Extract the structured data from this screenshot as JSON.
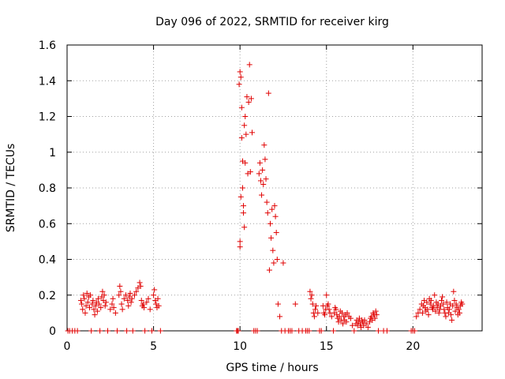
{
  "chart_data": {
    "type": "scatter",
    "title": "Day 096 of 2022, SRMTID for receiver kirg",
    "xlabel": "GPS time / hours",
    "ylabel": "SRMTID / TECUs",
    "xlim": [
      0,
      24
    ],
    "ylim": [
      0,
      1.6
    ],
    "xticks": [
      0,
      5,
      10,
      15,
      20
    ],
    "xtick_labels": [
      "0",
      "5",
      "10",
      "15",
      "20"
    ],
    "yticks": [
      0,
      0.2,
      0.4,
      0.6,
      0.8,
      1.0,
      1.2,
      1.4,
      1.6
    ],
    "ytick_labels": [
      "0",
      "0.2",
      "0.4",
      "0.6",
      "0.8",
      "1",
      "1.2",
      "1.4",
      "1.6"
    ],
    "grid": true,
    "marker": "+",
    "marker_color": "#e00000",
    "series": [
      {
        "name": "SRMTID",
        "x": [
          0.05,
          0.15,
          0.3,
          0.45,
          0.6,
          0.8,
          0.85,
          0.9,
          0.95,
          1.0,
          1.05,
          1.1,
          1.15,
          1.2,
          1.25,
          1.3,
          1.35,
          1.4,
          1.45,
          1.5,
          1.55,
          1.6,
          1.65,
          1.7,
          1.75,
          1.8,
          1.85,
          1.9,
          1.95,
          2.0,
          2.05,
          2.1,
          2.15,
          2.2,
          2.25,
          2.35,
          2.5,
          2.6,
          2.65,
          2.7,
          2.8,
          2.9,
          3.0,
          3.05,
          3.1,
          3.15,
          3.2,
          3.3,
          3.4,
          3.45,
          3.5,
          3.55,
          3.6,
          3.65,
          3.7,
          3.75,
          3.8,
          3.9,
          4.0,
          4.1,
          4.2,
          4.25,
          4.3,
          4.35,
          4.4,
          4.45,
          4.5,
          4.6,
          4.7,
          4.8,
          4.9,
          5.0,
          5.05,
          5.1,
          5.15,
          5.2,
          5.25,
          5.3,
          5.4,
          9.8,
          9.85,
          9.9,
          9.95,
          10.0,
          10.0,
          10.0,
          10.05,
          10.05,
          10.1,
          10.1,
          10.15,
          10.15,
          10.2,
          10.2,
          10.25,
          10.25,
          10.3,
          10.3,
          10.35,
          10.4,
          10.45,
          10.5,
          10.55,
          10.6,
          10.65,
          10.7,
          10.8,
          10.9,
          11.0,
          11.1,
          11.15,
          11.2,
          11.25,
          11.3,
          11.35,
          11.4,
          11.45,
          11.5,
          11.55,
          11.6,
          11.65,
          11.7,
          11.75,
          11.8,
          11.85,
          11.9,
          11.95,
          12.0,
          12.05,
          12.1,
          12.15,
          12.2,
          12.3,
          12.4,
          12.5,
          12.6,
          12.8,
          12.9,
          13.0,
          13.2,
          13.4,
          13.6,
          13.8,
          13.9,
          14.0,
          14.05,
          14.1,
          14.15,
          14.2,
          14.25,
          14.3,
          14.35,
          14.4,
          14.5,
          14.6,
          14.7,
          14.8,
          14.85,
          14.9,
          14.95,
          15.0,
          15.05,
          15.1,
          15.15,
          15.2,
          15.3,
          15.4,
          15.45,
          15.5,
          15.55,
          15.6,
          15.65,
          15.7,
          15.75,
          15.8,
          15.85,
          15.9,
          15.95,
          16.0,
          16.05,
          16.1,
          16.15,
          16.2,
          16.3,
          16.4,
          16.5,
          16.6,
          16.7,
          16.75,
          16.8,
          16.85,
          16.9,
          16.95,
          17.0,
          17.05,
          17.1,
          17.15,
          17.2,
          17.3,
          17.4,
          17.5,
          17.55,
          17.6,
          17.65,
          17.7,
          17.75,
          17.8,
          17.85,
          17.9,
          18.0,
          18.3,
          18.5,
          19.9,
          20.0,
          20.1,
          20.2,
          20.3,
          20.4,
          20.5,
          20.55,
          20.6,
          20.65,
          20.7,
          20.75,
          20.8,
          20.85,
          20.9,
          20.95,
          21.0,
          21.05,
          21.1,
          21.15,
          21.2,
          21.25,
          21.3,
          21.35,
          21.4,
          21.45,
          21.5,
          21.55,
          21.6,
          21.65,
          21.7,
          21.75,
          21.8,
          21.85,
          21.9,
          21.95,
          22.0,
          22.05,
          22.1,
          22.15,
          22.2,
          22.25,
          22.3,
          22.35,
          22.4,
          22.45,
          22.5,
          22.55,
          22.6,
          22.65,
          22.7,
          22.75,
          22.8,
          22.85
        ],
        "y": [
          0,
          0,
          0,
          0,
          0,
          0.17,
          0.15,
          0.12,
          0.2,
          0.18,
          0.1,
          0.14,
          0.21,
          0.16,
          0.19,
          0.13,
          0.2,
          0,
          0.15,
          0.17,
          0.12,
          0.09,
          0.14,
          0.16,
          0.11,
          0.18,
          0.15,
          0,
          0.13,
          0.19,
          0.22,
          0.17,
          0.2,
          0.14,
          0.16,
          0,
          0.12,
          0.15,
          0.18,
          0.13,
          0.1,
          0,
          0.2,
          0.25,
          0.22,
          0.15,
          0.12,
          0.18,
          0.2,
          0,
          0.17,
          0.14,
          0.19,
          0.21,
          0.16,
          0.18,
          0,
          0.2,
          0.22,
          0.24,
          0.27,
          0.25,
          0.17,
          0.14,
          0.15,
          0.13,
          0,
          0.16,
          0.18,
          0.12,
          0,
          0.2,
          0.23,
          0.17,
          0.15,
          0.13,
          0.18,
          0.14,
          0,
          0,
          0,
          0,
          1.38,
          1.45,
          0.5,
          0.47,
          1.42,
          0.75,
          1.25,
          1.08,
          0.95,
          0.8,
          0.7,
          0.66,
          1.15,
          0.58,
          1.2,
          0.94,
          1.1,
          1.31,
          0.88,
          1.28,
          1.49,
          0.89,
          1.3,
          1.11,
          0,
          0,
          0,
          0.88,
          0.94,
          0.84,
          0.76,
          0.9,
          0.82,
          1.04,
          0.96,
          0.85,
          0.72,
          0.66,
          1.33,
          0.34,
          0.6,
          0.52,
          0.68,
          0.45,
          0.38,
          0.7,
          0.64,
          0.55,
          0.4,
          0.15,
          0.08,
          0,
          0.38,
          0,
          0,
          0,
          0,
          0.15,
          0,
          0,
          0,
          0,
          0,
          0.22,
          0.18,
          0.2,
          0.15,
          0.1,
          0.08,
          0.12,
          0.14,
          0.1,
          0,
          0,
          0.14,
          0.1,
          0.09,
          0.12,
          0.2,
          0.14,
          0.15,
          0.12,
          0.1,
          0.08,
          0,
          0.1,
          0.13,
          0.12,
          0.09,
          0.07,
          0.05,
          0.08,
          0.11,
          0.06,
          0.1,
          0.04,
          0.08,
          0.06,
          0.09,
          0.05,
          0.1,
          0.08,
          0.07,
          0.03,
          0,
          0.04,
          0.06,
          0.03,
          0.05,
          0.07,
          0.04,
          0.02,
          0.06,
          0.05,
          0.03,
          0.06,
          0.04,
          0.02,
          0.05,
          0.07,
          0.08,
          0.06,
          0.1,
          0.09,
          0.07,
          0.11,
          0.09,
          0,
          0,
          0,
          0,
          0,
          0,
          0.08,
          0.1,
          0.12,
          0.15,
          0.1,
          0.14,
          0.17,
          0.13,
          0.11,
          0.16,
          0.12,
          0.09,
          0.18,
          0.15,
          0.17,
          0.13,
          0.12,
          0.14,
          0.2,
          0.11,
          0.16,
          0.13,
          0.15,
          0.1,
          0.12,
          0.14,
          0.17,
          0.19,
          0.15,
          0.12,
          0.1,
          0.08,
          0.16,
          0.13,
          0.1,
          0.12,
          0.15,
          0.09,
          0.06,
          0.14,
          0.22,
          0.17,
          0.11,
          0.15,
          0.13,
          0.09,
          0.12,
          0.1,
          0.14,
          0.16,
          0.15
        ]
      }
    ]
  }
}
